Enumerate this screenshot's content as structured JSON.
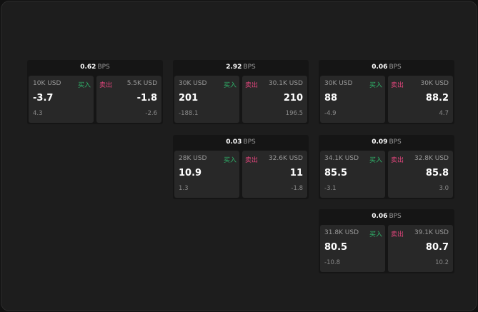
{
  "unit": "BPS",
  "buy_label": "买入",
  "sell_label": "卖出",
  "colors": {
    "buy": "#2fb36a",
    "sell": "#e0457b"
  },
  "quotes": [
    {
      "spread": "0.62",
      "bid_size": "10K USD",
      "bid": "-3.7",
      "bid_change": "4.3",
      "ask_size": "5.5K USD",
      "ask": "-1.8",
      "ask_change": "-2.6"
    },
    {
      "spread": "2.92",
      "bid_size": "30K USD",
      "bid": "201",
      "bid_change": "-188.1",
      "ask_size": "30.1K USD",
      "ask": "210",
      "ask_change": "196.5"
    },
    {
      "spread": "0.06",
      "bid_size": "30K USD",
      "bid": "88",
      "bid_change": "-4.9",
      "ask_size": "30K USD",
      "ask": "88.2",
      "ask_change": "4.7"
    },
    {
      "spread": "0.03",
      "bid_size": "28K USD",
      "bid": "10.9",
      "bid_change": "1.3",
      "ask_size": "32.6K USD",
      "ask": "11",
      "ask_change": "-1.8"
    },
    {
      "spread": "0.09",
      "bid_size": "34.1K USD",
      "bid": "85.5",
      "bid_change": "-3.1",
      "ask_size": "32.8K USD",
      "ask": "85.8",
      "ask_change": "3.0"
    },
    {
      "spread": "0.06",
      "bid_size": "31.8K USD",
      "bid": "80.5",
      "bid_change": "-10.8",
      "ask_size": "39.1K USD",
      "ask": "80.7",
      "ask_change": "10.2"
    }
  ]
}
